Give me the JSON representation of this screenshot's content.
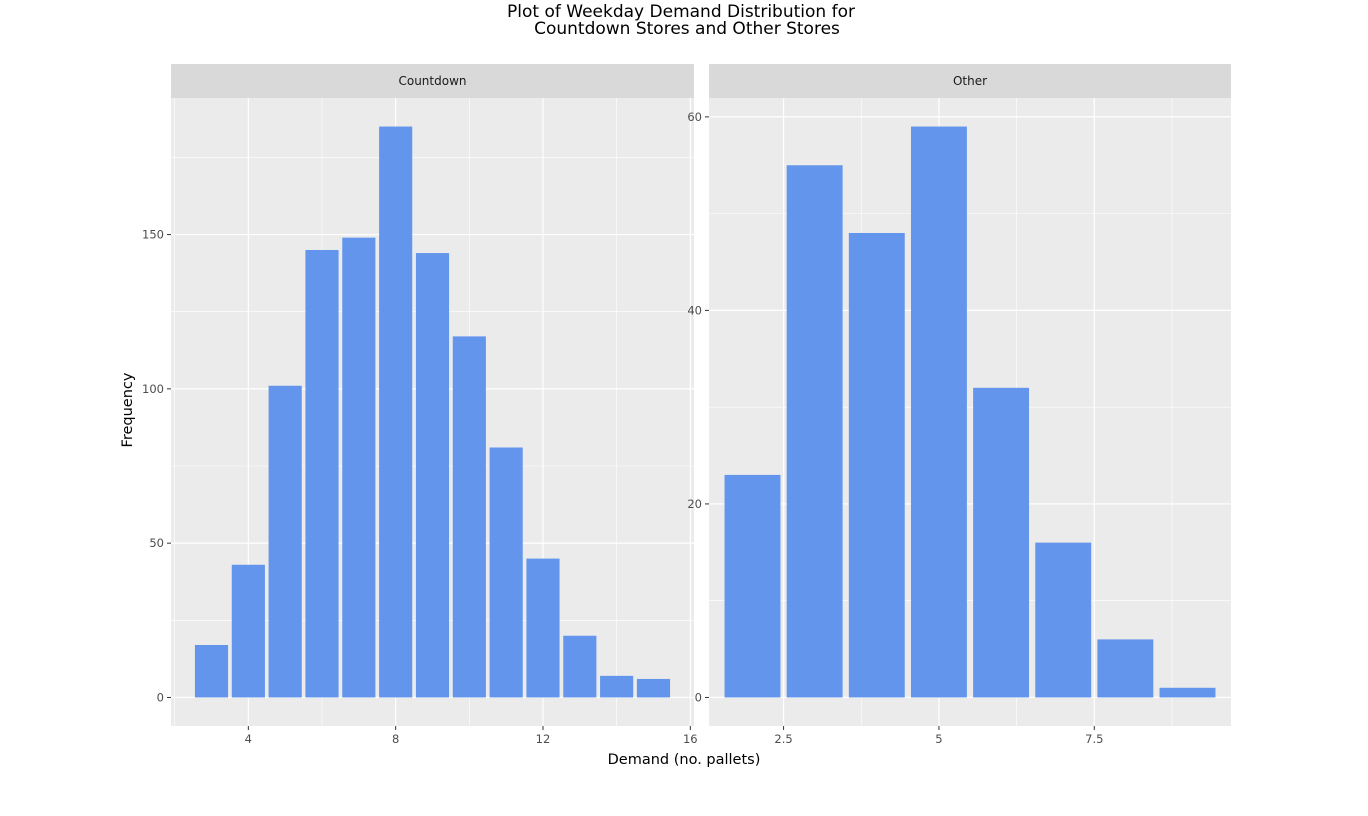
{
  "chart_data": {
    "type": "bar",
    "title_lines": [
      "Plot of Weekday Demand Distribution for",
      "Countdown Stores and Other Stores"
    ],
    "xlabel": "Demand (no. pallets)",
    "ylabel": "Frequency",
    "bar_color": "#6495ED",
    "panel_background": "#EBEBEB",
    "strip_background": "#D9D9D9",
    "grid": true,
    "facets": [
      {
        "label": "Countdown",
        "x": [
          3,
          4,
          5,
          6,
          7,
          8,
          9,
          10,
          11,
          12,
          13,
          14,
          15
        ],
        "values": [
          17,
          43,
          101,
          145,
          149,
          185,
          144,
          117,
          81,
          45,
          20,
          7,
          6
        ],
        "xlim": [
          1.9,
          16.1
        ],
        "ylim": [
          -9.25,
          194.25
        ],
        "x_ticks": [
          4,
          8,
          12,
          16
        ],
        "x_tick_labels": [
          "4",
          "8",
          "12",
          "16"
        ],
        "y_ticks": [
          0,
          50,
          100,
          150
        ],
        "y_tick_labels": [
          "0",
          "50",
          "100",
          "150"
        ]
      },
      {
        "label": "Other",
        "x": [
          2,
          3,
          4,
          5,
          6,
          7,
          8,
          9
        ],
        "values": [
          23,
          55,
          48,
          59,
          32,
          16,
          6,
          1
        ],
        "xlim": [
          1.3,
          9.7
        ],
        "ylim": [
          -2.95,
          61.95
        ],
        "x_ticks": [
          2.5,
          5,
          7.5
        ],
        "x_tick_labels": [
          "2.5",
          "5",
          "7.5"
        ],
        "y_ticks": [
          0,
          20,
          40,
          60
        ],
        "y_tick_labels": [
          "0",
          "20",
          "40",
          "60"
        ]
      }
    ]
  }
}
